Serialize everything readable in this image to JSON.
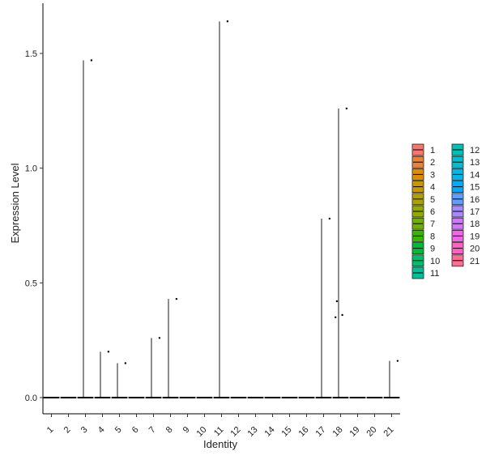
{
  "chart_data": {
    "type": "violin",
    "xlabel": "Identity",
    "ylabel": "Expression Level",
    "categories": [
      "1",
      "2",
      "3",
      "4",
      "5",
      "6",
      "7",
      "8",
      "9",
      "10",
      "11",
      "12",
      "13",
      "14",
      "15",
      "16",
      "17",
      "18",
      "19",
      "20",
      "21"
    ],
    "ylim": [
      -0.07,
      1.72
    ],
    "yticks": [
      0.0,
      0.5,
      1.0,
      1.5
    ],
    "ytick_labels": [
      "0.0",
      "0.5",
      "1.0",
      "1.5"
    ],
    "series": [
      {
        "category": "1",
        "max": 0,
        "points": []
      },
      {
        "category": "2",
        "max": 0,
        "points": []
      },
      {
        "category": "3",
        "max": 1.47,
        "points": [
          1.47
        ]
      },
      {
        "category": "4",
        "max": 0.2,
        "points": [
          0.2
        ]
      },
      {
        "category": "5",
        "max": 0.15,
        "points": [
          0.15
        ]
      },
      {
        "category": "6",
        "max": 0,
        "points": []
      },
      {
        "category": "7",
        "max": 0.26,
        "points": [
          0.26
        ]
      },
      {
        "category": "8",
        "max": 0.43,
        "points": [
          0.43
        ]
      },
      {
        "category": "9",
        "max": 0,
        "points": []
      },
      {
        "category": "10",
        "max": 0,
        "points": []
      },
      {
        "category": "11",
        "max": 1.64,
        "points": [
          1.64
        ]
      },
      {
        "category": "12",
        "max": 0,
        "points": []
      },
      {
        "category": "13",
        "max": 0,
        "points": []
      },
      {
        "category": "14",
        "max": 0,
        "points": []
      },
      {
        "category": "15",
        "max": 0,
        "points": []
      },
      {
        "category": "16",
        "max": 0,
        "points": []
      },
      {
        "category": "17",
        "max": 0.78,
        "points": [
          0.78
        ]
      },
      {
        "category": "18",
        "max": 1.26,
        "points": [
          1.26,
          0.42,
          0.36,
          0.35
        ]
      },
      {
        "category": "19",
        "max": 0,
        "points": []
      },
      {
        "category": "20",
        "max": 0,
        "points": []
      },
      {
        "category": "21",
        "max": 0.16,
        "points": [
          0.16
        ]
      }
    ],
    "legend": {
      "position": "right",
      "columns": 2,
      "entries": [
        {
          "label": "1",
          "color": "#F8766D"
        },
        {
          "label": "2",
          "color": "#EC8239"
        },
        {
          "label": "3",
          "color": "#DB8E00"
        },
        {
          "label": "4",
          "color": "#C79800"
        },
        {
          "label": "5",
          "color": "#AFA100"
        },
        {
          "label": "6",
          "color": "#93AA00"
        },
        {
          "label": "7",
          "color": "#6FB000"
        },
        {
          "label": "8",
          "color": "#39B600"
        },
        {
          "label": "9",
          "color": "#00BA38"
        },
        {
          "label": "10",
          "color": "#00BE6C"
        },
        {
          "label": "11",
          "color": "#00C094"
        },
        {
          "label": "12",
          "color": "#00C1B5"
        },
        {
          "label": "13",
          "color": "#00BFD1"
        },
        {
          "label": "14",
          "color": "#00B8E7"
        },
        {
          "label": "15",
          "color": "#00ABFD"
        },
        {
          "label": "16",
          "color": "#619CFF"
        },
        {
          "label": "17",
          "color": "#A58AFF"
        },
        {
          "label": "18",
          "color": "#D078F7"
        },
        {
          "label": "19",
          "color": "#F166E8"
        },
        {
          "label": "20",
          "color": "#FF61C3"
        },
        {
          "label": "21",
          "color": "#FF6C93"
        }
      ]
    },
    "grid": false
  }
}
